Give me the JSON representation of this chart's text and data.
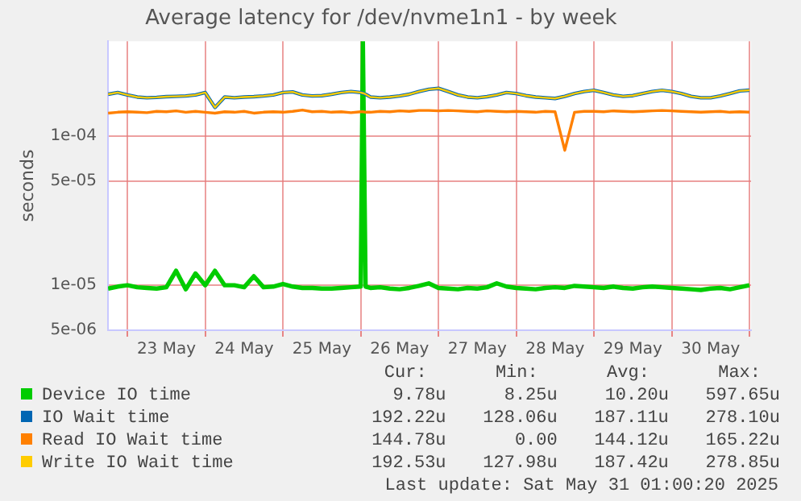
{
  "chart_data": {
    "type": "line",
    "title": "Average latency for /dev/nvme1n1 - by week",
    "ylabel": "seconds",
    "log": "y",
    "grid": true,
    "legend": "bottom",
    "marker": "none",
    "line_style": "solid",
    "xlim": [
      "2025-05-22T18:00",
      "2025-05-31T00:30"
    ],
    "xticks": [
      {
        "value": "2025-05-23T00:00",
        "label": null
      },
      {
        "value": "2025-05-23T12:00",
        "label": "23 May"
      },
      {
        "value": "2025-05-24T00:00",
        "label": null
      },
      {
        "value": "2025-05-24T12:00",
        "label": "24 May"
      },
      {
        "value": "2025-05-25T00:00",
        "label": null
      },
      {
        "value": "2025-05-25T12:00",
        "label": "25 May"
      },
      {
        "value": "2025-05-26T00:00",
        "label": null
      },
      {
        "value": "2025-05-26T12:00",
        "label": "26 May"
      },
      {
        "value": "2025-05-27T00:00",
        "label": null
      },
      {
        "value": "2025-05-27T12:00",
        "label": "27 May"
      },
      {
        "value": "2025-05-28T00:00",
        "label": null
      },
      {
        "value": "2025-05-28T12:00",
        "label": "28 May"
      },
      {
        "value": "2025-05-29T00:00",
        "label": null
      },
      {
        "value": "2025-05-29T12:00",
        "label": "29 May"
      },
      {
        "value": "2025-05-30T00:00",
        "label": null
      },
      {
        "value": "2025-05-30T12:00",
        "label": "30 May"
      },
      {
        "value": "2025-05-31T00:00",
        "label": null
      }
    ],
    "ylim": [
      5e-06,
      0.00043
    ],
    "yticks": [
      {
        "value": 5e-06,
        "label": "5e-06"
      },
      {
        "value": 1e-05,
        "label": "1e-05"
      },
      {
        "value": 5e-05,
        "label": "5e-05"
      },
      {
        "value": 0.0001,
        "label": "1e-04"
      }
    ],
    "x": [
      "2025-05-22T18:00",
      "2025-05-22T21:00",
      "2025-05-23T00:00",
      "2025-05-23T03:00",
      "2025-05-23T06:00",
      "2025-05-23T09:00",
      "2025-05-23T12:00",
      "2025-05-23T15:00",
      "2025-05-23T18:00",
      "2025-05-23T21:00",
      "2025-05-24T00:00",
      "2025-05-24T03:00",
      "2025-05-24T06:00",
      "2025-05-24T09:00",
      "2025-05-24T12:00",
      "2025-05-24T15:00",
      "2025-05-24T18:00",
      "2025-05-24T21:00",
      "2025-05-25T00:00",
      "2025-05-25T03:00",
      "2025-05-25T06:00",
      "2025-05-25T09:00",
      "2025-05-25T12:00",
      "2025-05-25T15:00",
      "2025-05-25T18:00",
      "2025-05-25T21:00",
      "2025-05-26T00:00",
      "2025-05-26T00:40",
      "2025-05-26T01:30",
      "2025-05-26T03:00",
      "2025-05-26T06:00",
      "2025-05-26T09:00",
      "2025-05-26T12:00",
      "2025-05-26T15:00",
      "2025-05-26T18:00",
      "2025-05-26T21:00",
      "2025-05-27T00:00",
      "2025-05-27T03:00",
      "2025-05-27T06:00",
      "2025-05-27T09:00",
      "2025-05-27T12:00",
      "2025-05-27T15:00",
      "2025-05-27T18:00",
      "2025-05-27T21:00",
      "2025-05-28T00:00",
      "2025-05-28T03:00",
      "2025-05-28T06:00",
      "2025-05-28T09:00",
      "2025-05-28T12:00",
      "2025-05-28T15:00",
      "2025-05-28T18:00",
      "2025-05-28T21:00",
      "2025-05-29T00:00",
      "2025-05-29T03:00",
      "2025-05-29T06:00",
      "2025-05-29T09:00",
      "2025-05-29T12:00",
      "2025-05-29T15:00",
      "2025-05-29T18:00",
      "2025-05-29T21:00",
      "2025-05-30T00:00",
      "2025-05-30T03:00",
      "2025-05-30T06:00",
      "2025-05-30T09:00",
      "2025-05-30T12:00",
      "2025-05-30T15:00",
      "2025-05-30T18:00",
      "2025-05-30T21:00",
      "2025-05-31T00:00"
    ],
    "series": [
      {
        "name": "Device IO time",
        "color": "#00cc00",
        "values": [
          9.5e-06,
          9.8e-06,
          1e-05,
          9.7e-06,
          9.6e-06,
          9.5e-06,
          9.7e-06,
          1.25e-05,
          9.4e-06,
          1.2e-05,
          1e-05,
          1.25e-05,
          1e-05,
          1e-05,
          9.7e-06,
          1.15e-05,
          9.7e-06,
          9.8e-06,
          1.02e-05,
          9.8e-06,
          9.6e-06,
          9.6e-06,
          9.5e-06,
          9.5e-06,
          9.6e-06,
          9.7e-06,
          9.8e-06,
          0.00043,
          9.8e-06,
          9.6e-06,
          9.7e-06,
          9.5e-06,
          9.4e-06,
          9.6e-06,
          9.9e-06,
          1.03e-05,
          9.6e-06,
          9.5e-06,
          9.4e-06,
          9.6e-06,
          9.5e-06,
          9.7e-06,
          1.03e-05,
          9.8e-06,
          9.6e-06,
          9.5e-06,
          9.4e-06,
          9.6e-06,
          9.7e-06,
          9.6e-06,
          9.9e-06,
          9.8e-06,
          9.7e-06,
          9.6e-06,
          9.8e-06,
          9.6e-06,
          9.5e-06,
          9.7e-06,
          9.8e-06,
          9.7e-06,
          9.6e-06,
          9.5e-06,
          9.4e-06,
          9.3e-06,
          9.5e-06,
          9.6e-06,
          9.4e-06,
          9.7e-06,
          1e-05
        ]
      },
      {
        "name": "IO Wait time",
        "color": "#0066b3",
        "values": [
          0.00019,
          0.000195,
          0.000188,
          0.000182,
          0.00018,
          0.000181,
          0.000183,
          0.000184,
          0.000185,
          0.000188,
          0.000195,
          0.000155,
          0.000182,
          0.00018,
          0.000182,
          0.000183,
          0.000185,
          0.000188,
          0.000195,
          0.000197,
          0.000188,
          0.000185,
          0.000186,
          0.00019,
          0.000195,
          0.000198,
          0.000195,
          0.000193,
          0.00019,
          0.000182,
          0.00018,
          0.000182,
          0.000185,
          0.00019,
          0.000198,
          0.000205,
          0.000208,
          0.000198,
          0.000188,
          0.000182,
          0.00018,
          0.000183,
          0.000188,
          0.000195,
          0.000192,
          0.000186,
          0.000182,
          0.00018,
          0.000178,
          0.000184,
          0.000192,
          0.000198,
          0.000202,
          0.000195,
          0.000188,
          0.000184,
          0.000186,
          0.000192,
          0.000198,
          0.000202,
          0.000198,
          0.000192,
          0.000184,
          0.00018,
          0.00018,
          0.000185,
          0.000192,
          0.0002,
          0.000202
        ]
      },
      {
        "name": "Read IO Wait time",
        "color": "#ff8000",
        "values": [
          0.000142,
          0.000144,
          0.000145,
          0.000144,
          0.000143,
          0.000146,
          0.000145,
          0.000147,
          0.000144,
          0.000146,
          0.000144,
          0.000142,
          0.000145,
          0.000144,
          0.000146,
          0.000142,
          0.000144,
          0.000145,
          0.000144,
          0.000146,
          0.000149,
          0.000145,
          0.000146,
          0.000144,
          0.000145,
          0.000143,
          0.000145,
          0.000145,
          0.000144,
          0.000144,
          0.000146,
          0.000145,
          0.000147,
          0.000146,
          0.000148,
          0.000148,
          0.000147,
          0.000148,
          0.000147,
          0.000146,
          0.000145,
          0.000147,
          0.000146,
          0.000145,
          0.000146,
          0.000145,
          0.000144,
          0.000146,
          0.000145,
          8e-05,
          0.000144,
          0.000146,
          0.000146,
          0.000145,
          0.000147,
          0.000146,
          0.000145,
          0.000146,
          0.000147,
          0.000148,
          0.000147,
          0.000146,
          0.000145,
          0.000144,
          0.000145,
          0.000146,
          0.000144,
          0.000145,
          0.000144
        ]
      },
      {
        "name": "Write IO Wait time",
        "color": "#ffcc00",
        "values": [
          0.00019,
          0.000195,
          0.000188,
          0.000182,
          0.00018,
          0.000181,
          0.000183,
          0.000184,
          0.000185,
          0.000188,
          0.000195,
          0.000155,
          0.000182,
          0.00018,
          0.000182,
          0.000183,
          0.000185,
          0.000188,
          0.000195,
          0.000197,
          0.000188,
          0.000185,
          0.000186,
          0.00019,
          0.000195,
          0.000198,
          0.000195,
          0.000193,
          0.00019,
          0.000182,
          0.00018,
          0.000182,
          0.000185,
          0.00019,
          0.000198,
          0.000205,
          0.000208,
          0.000198,
          0.000188,
          0.000182,
          0.00018,
          0.000183,
          0.000188,
          0.000195,
          0.000192,
          0.000186,
          0.000182,
          0.00018,
          0.000178,
          0.000184,
          0.000192,
          0.000198,
          0.000202,
          0.000195,
          0.000188,
          0.000184,
          0.000186,
          0.000192,
          0.000198,
          0.000202,
          0.000198,
          0.000192,
          0.000184,
          0.00018,
          0.00018,
          0.000185,
          0.000192,
          0.0002,
          0.000202
        ]
      }
    ],
    "annotations": [
      "Cur:",
      "Min:",
      "Avg:",
      "Max:",
      "9.78u",
      "8.25u",
      "10.20u",
      "597.65u",
      "192.22u",
      "128.06u",
      "187.11u",
      "278.10u",
      "144.78u",
      "0.00",
      "144.12u",
      "165.22u",
      "192.53u",
      "127.98u",
      "187.42u",
      "278.85u",
      "Last update: Sat May 31 01:00:20 2025"
    ]
  }
}
